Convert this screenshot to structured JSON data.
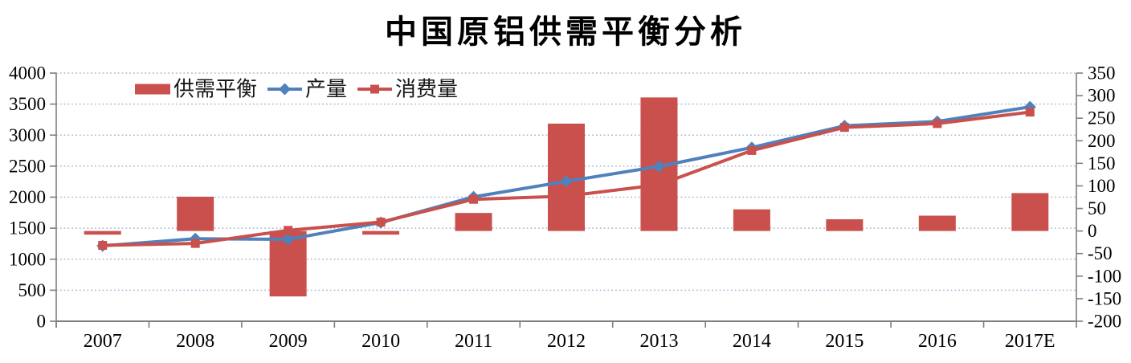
{
  "title": "中国原铝供需平衡分析",
  "colors": {
    "bar_red": "#C9504C",
    "line_blue": "#4F81BD",
    "line_red": "#C9504C",
    "gridline": "#A9BAD4",
    "axis": "#7F7F7F",
    "text": "#000000",
    "background": "#FFFFFF"
  },
  "chart_data": {
    "type": "combo-bar-line",
    "title": "中国原铝供需平衡分析",
    "categories": [
      "2007",
      "2008",
      "2009",
      "2010",
      "2011",
      "2012",
      "2013",
      "2014",
      "2015",
      "2016",
      "2017E"
    ],
    "series": [
      {
        "key": "balance",
        "name": "供需平衡",
        "type": "bar",
        "axis": "right",
        "color": "#C9504C",
        "values": [
          -8,
          76,
          -145,
          -8,
          40,
          238,
          296,
          48,
          26,
          34,
          84
        ]
      },
      {
        "key": "production",
        "name": "产量",
        "type": "line",
        "marker": "diamond",
        "axis": "left",
        "color": "#4F81BD",
        "values": [
          1215,
          1330,
          1320,
          1590,
          2005,
          2255,
          2495,
          2800,
          3150,
          3220,
          3455
        ]
      },
      {
        "key": "consumption",
        "name": "消费量",
        "type": "line",
        "marker": "square",
        "axis": "left",
        "color": "#C9504C",
        "values": [
          1223,
          1254,
          1465,
          1598,
          1965,
          2017,
          2199,
          2752,
          3124,
          3186,
          3371
        ]
      }
    ],
    "left_axis": {
      "min": 0,
      "max": 4000,
      "step": 500,
      "tick_labels": [
        "4000",
        "3500",
        "3000",
        "2500",
        "2000",
        "1500",
        "1000",
        "500",
        "0"
      ]
    },
    "right_axis": {
      "min": -200,
      "max": 350,
      "step": 50,
      "tick_labels": [
        "350",
        "300",
        "250",
        "200",
        "150",
        "100",
        "50",
        "0",
        "-50",
        "-100",
        "-150",
        "-200"
      ]
    },
    "grid": {
      "horizontal": true,
      "style": "dotted"
    },
    "legend": {
      "position": "top-inside",
      "order": [
        "供需平衡",
        "产量",
        "消费量"
      ]
    }
  }
}
